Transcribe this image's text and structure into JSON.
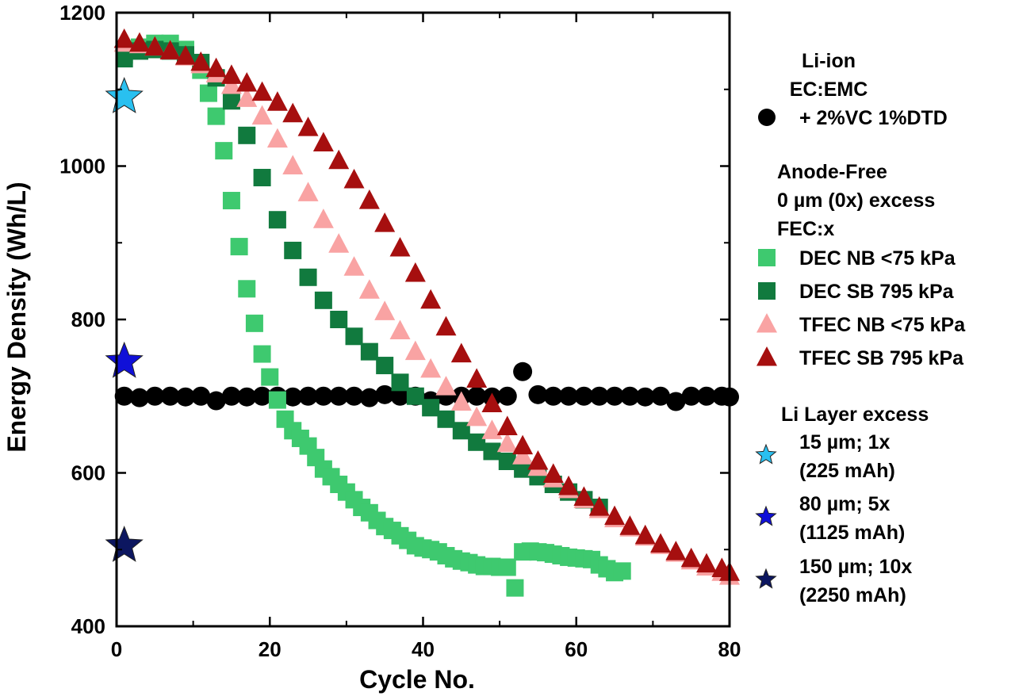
{
  "chart_data": {
    "type": "scatter",
    "xlabel": "Cycle No.",
    "ylabel": "Energy Density (Wh/L)",
    "xlim": [
      0,
      80
    ],
    "ylim": [
      400,
      1200
    ],
    "xticks": [
      0,
      20,
      40,
      60,
      80
    ],
    "yticks": [
      400,
      600,
      800,
      1000,
      1200
    ],
    "grid": false,
    "legend_position": "right",
    "legend_groups": [
      {
        "title_lines": [
          "Li-ion",
          "EC:EMC"
        ]
      },
      {
        "title_lines": [
          "Anode-Free",
          "0 µm (0x) excess",
          "FEC:x"
        ]
      },
      {
        "title_lines": [
          "Li Layer excess"
        ]
      }
    ],
    "series": [
      {
        "name": "+ 2%VC 1%DTD",
        "group": 0,
        "marker": "circle",
        "color": "#000000",
        "x": [
          1,
          3,
          5,
          7,
          9,
          11,
          13,
          15,
          17,
          19,
          21,
          23,
          25,
          27,
          29,
          31,
          33,
          35,
          37,
          39,
          41,
          43,
          45,
          47,
          49,
          51,
          53,
          55,
          57,
          59,
          61,
          63,
          65,
          67,
          69,
          71,
          73,
          75,
          77,
          79,
          80
        ],
        "y": [
          700,
          698,
          700,
          700,
          699,
          700,
          694,
          700,
          699,
          700,
          700,
          699,
          700,
          700,
          700,
          700,
          698,
          702,
          700,
          700,
          694,
          700,
          700,
          700,
          699,
          700,
          732,
          702,
          700,
          700,
          700,
          700,
          700,
          700,
          699,
          700,
          693,
          700,
          700,
          700,
          699
        ]
      },
      {
        "name": "DEC NB <75 kPa",
        "group": 1,
        "marker": "square",
        "color": "#3ec96f",
        "x": [
          1,
          3,
          5,
          7,
          9,
          11,
          12,
          13,
          14,
          15,
          16,
          17,
          18,
          19,
          20,
          21,
          22,
          23,
          24,
          25,
          26,
          27,
          28,
          29,
          30,
          31,
          32,
          33,
          34,
          35,
          36,
          37,
          38,
          39,
          40,
          41,
          42,
          43,
          44,
          45,
          46,
          47,
          48,
          49,
          50,
          51,
          52,
          53,
          54,
          55,
          56,
          57,
          58,
          59,
          60,
          61,
          62,
          63,
          64,
          65,
          66
        ],
        "y": [
          1145,
          1155,
          1160,
          1160,
          1152,
          1125,
          1095,
          1065,
          1020,
          955,
          895,
          840,
          795,
          755,
          725,
          695,
          670,
          655,
          645,
          635,
          620,
          605,
          595,
          585,
          575,
          565,
          555,
          548,
          538,
          530,
          525,
          518,
          512,
          505,
          502,
          500,
          497,
          492,
          488,
          485,
          483,
          480,
          478,
          478,
          477,
          477,
          450,
          497,
          498,
          497,
          496,
          494,
          492,
          490,
          489,
          488,
          487,
          480,
          475,
          470,
          472
        ]
      },
      {
        "name": "DEC SB 795 kPa",
        "group": 1,
        "marker": "square",
        "color": "#117a3e",
        "x": [
          1,
          3,
          5,
          7,
          9,
          11,
          13,
          15,
          17,
          19,
          21,
          23,
          25,
          27,
          29,
          31,
          33,
          35,
          37,
          39,
          41,
          43,
          45,
          47,
          49,
          51,
          53,
          55,
          57,
          59,
          61,
          63
        ],
        "y": [
          1140,
          1150,
          1152,
          1150,
          1145,
          1135,
          1115,
          1085,
          1040,
          985,
          930,
          890,
          855,
          825,
          800,
          778,
          758,
          740,
          718,
          700,
          685,
          670,
          655,
          640,
          628,
          615,
          605,
          595,
          585,
          575,
          565,
          555
        ]
      },
      {
        "name": "TFEC NB <75 kPa",
        "group": 1,
        "marker": "triangle",
        "color": "#f9a3a3",
        "x": [
          1,
          3,
          5,
          7,
          9,
          11,
          13,
          15,
          17,
          19,
          21,
          23,
          25,
          27,
          29,
          31,
          33,
          35,
          37,
          39,
          41,
          43,
          45,
          47,
          49,
          51,
          53,
          55,
          57,
          59,
          61,
          63,
          65,
          67,
          69,
          71,
          73,
          75,
          77,
          79,
          80
        ],
        "y": [
          1160,
          1158,
          1155,
          1150,
          1142,
          1132,
          1120,
          1105,
          1088,
          1065,
          1035,
          1000,
          965,
          930,
          898,
          868,
          838,
          810,
          785,
          758,
          735,
          712,
          692,
          672,
          655,
          638,
          622,
          607,
          592,
          578,
          565,
          552,
          540,
          528,
          516,
          505,
          495,
          485,
          477,
          470,
          465
        ]
      },
      {
        "name": "TFEC SB 795 kPa",
        "group": 1,
        "marker": "triangle",
        "color": "#a60f0f",
        "x": [
          1,
          3,
          5,
          7,
          9,
          11,
          13,
          15,
          17,
          19,
          21,
          23,
          25,
          27,
          29,
          31,
          33,
          35,
          37,
          39,
          41,
          43,
          45,
          47,
          49,
          51,
          53,
          55,
          57,
          59,
          61,
          63,
          65,
          67,
          69,
          71,
          73,
          75,
          77,
          79,
          80
        ],
        "y": [
          1165,
          1160,
          1155,
          1150,
          1143,
          1135,
          1127,
          1118,
          1108,
          1096,
          1083,
          1068,
          1050,
          1030,
          1007,
          982,
          955,
          925,
          893,
          860,
          825,
          790,
          755,
          722,
          690,
          660,
          635,
          615,
          598,
          582,
          568,
          555,
          543,
          530,
          518,
          507,
          497,
          488,
          481,
          475,
          470
        ]
      },
      {
        "name": "15 µm; 1x",
        "name_line2": "(225 mAh)",
        "group": 2,
        "marker": "star",
        "color": "#29c0f0",
        "x": [
          1
        ],
        "y": [
          1090
        ]
      },
      {
        "name": "80 µm; 5x",
        "name_line2": "(1125 mAh)",
        "group": 2,
        "marker": "star",
        "color": "#1010d8",
        "x": [
          1
        ],
        "y": [
          745
        ]
      },
      {
        "name": "150 µm; 10x",
        "name_line2": "(2250 mAh)",
        "group": 2,
        "marker": "star",
        "color": "#0c1660",
        "x": [
          1
        ],
        "y": [
          505
        ]
      }
    ]
  }
}
